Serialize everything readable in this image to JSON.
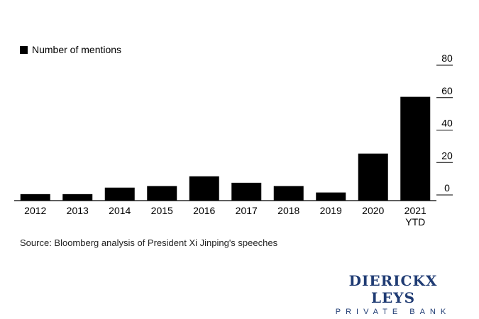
{
  "chart_data": {
    "type": "bar",
    "categories": [
      "2012",
      "2013",
      "2014",
      "2015",
      "2016",
      "2017",
      "2018",
      "2019",
      "2020",
      "2021\nYTD"
    ],
    "values": [
      4,
      4,
      8,
      9,
      15,
      11,
      9,
      5,
      29,
      64
    ],
    "ylim": [
      0,
      80
    ],
    "yticks": [
      0,
      20,
      40,
      60,
      80
    ],
    "legend": "Number of mentions",
    "legend_position": "top-left",
    "y_axis_position": "right",
    "grid": false,
    "bar_color": "#000000"
  },
  "source": "Source: Bloomberg analysis of President Xi Jinping's speeches",
  "brand": {
    "name": "DIERICKX LEYS",
    "subtitle": "PRIVATE BANK",
    "color": "#1f3b73"
  }
}
